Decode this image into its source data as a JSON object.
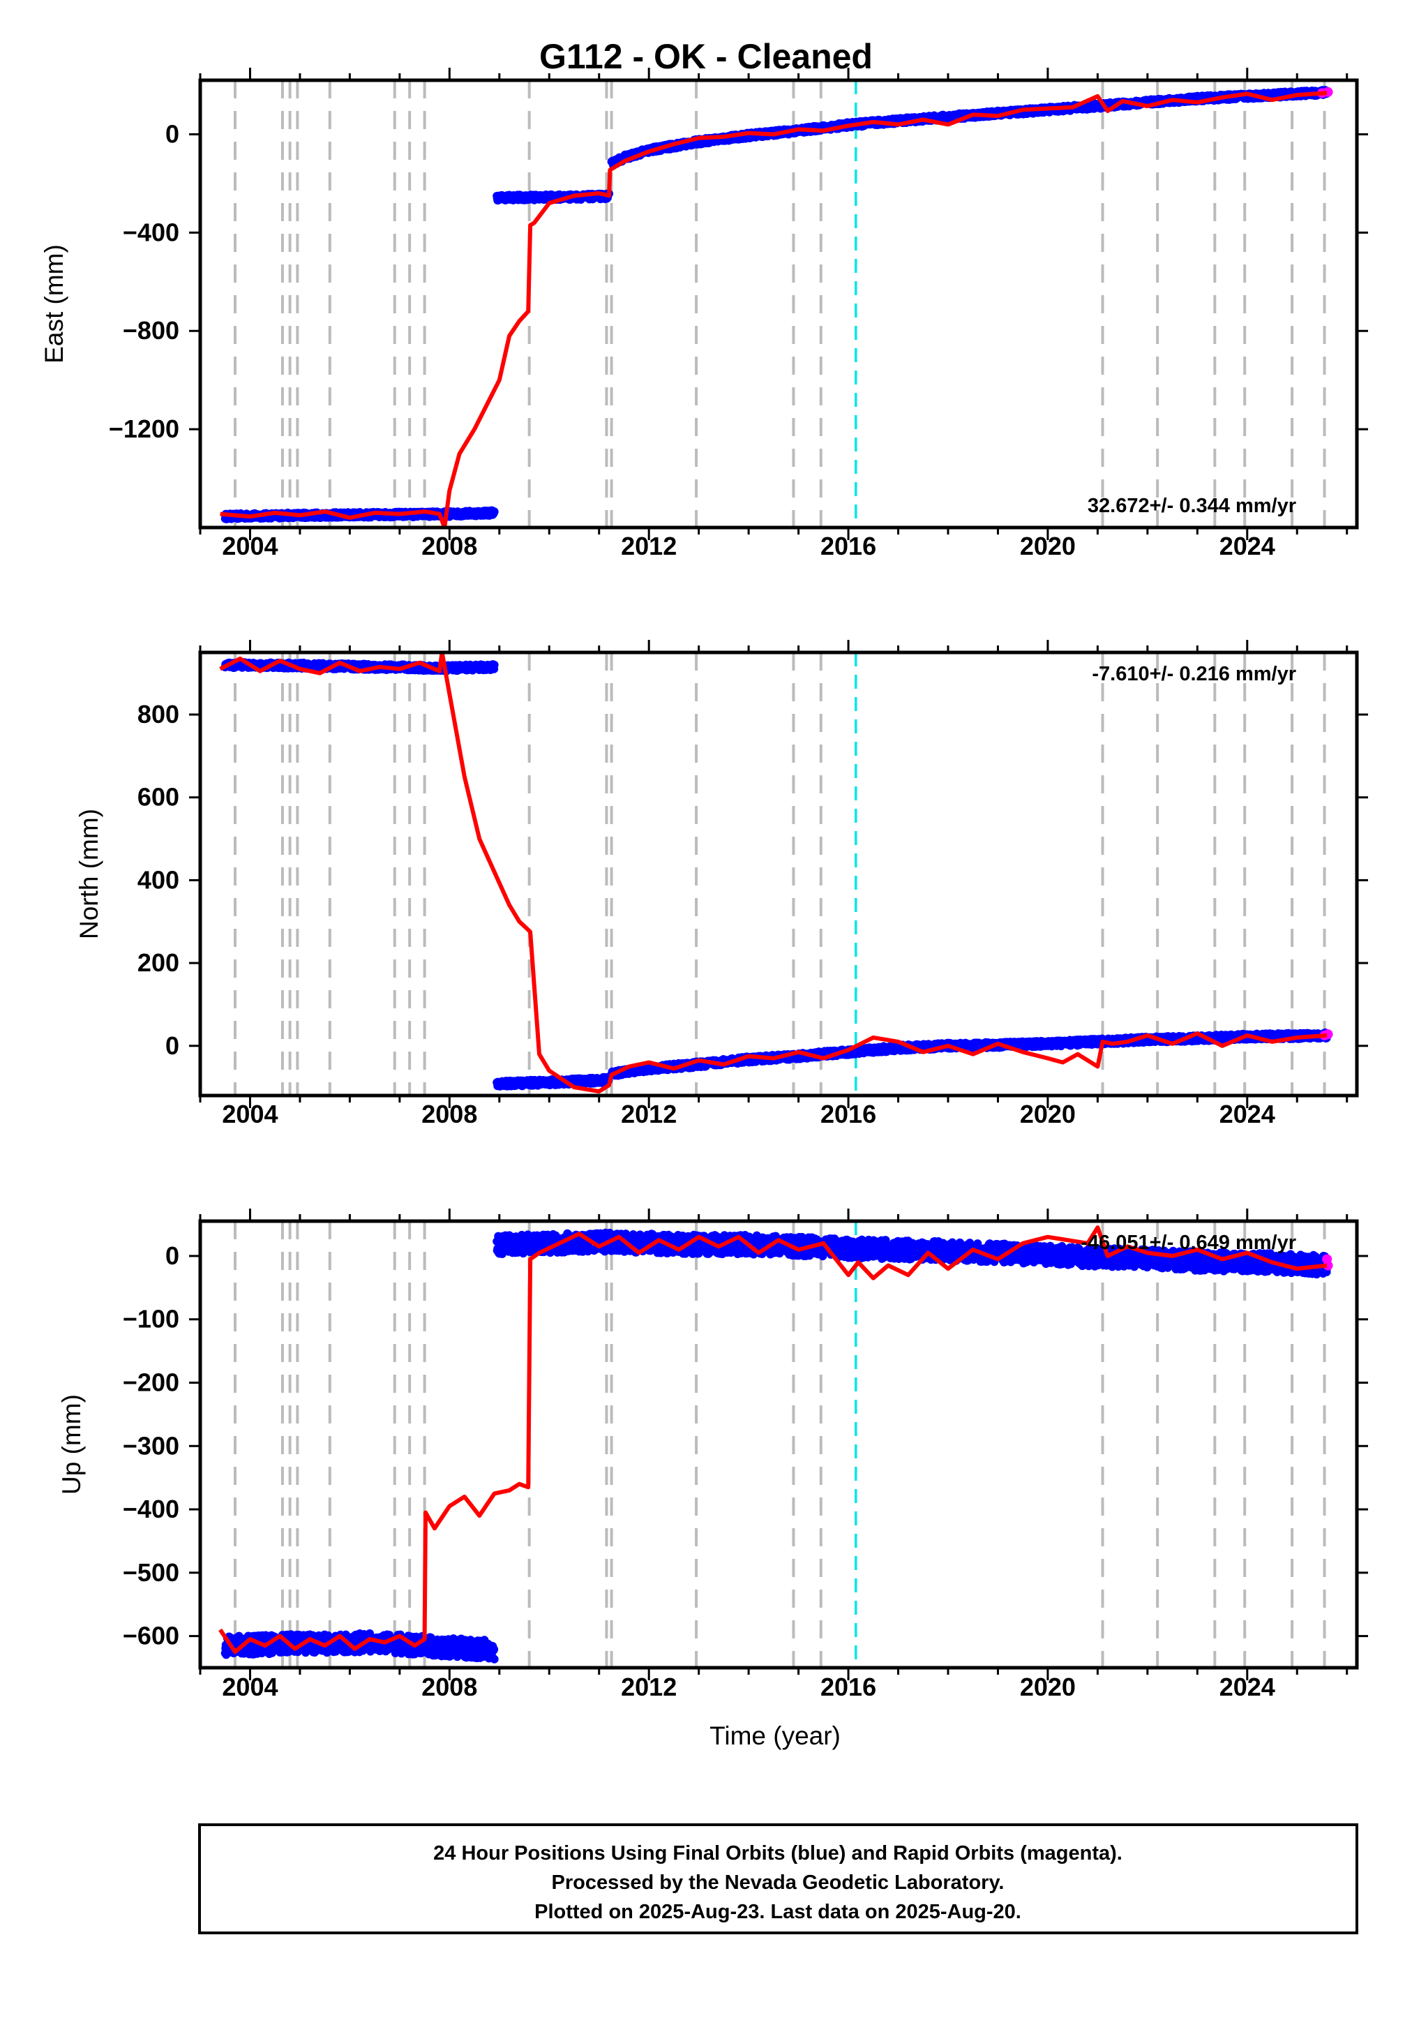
{
  "title": "G112  - OK - Cleaned",
  "footer": {
    "line1": "24 Hour Positions Using Final Orbits (blue) and Rapid Orbits (magenta).",
    "line2": "Processed by the Nevada Geodetic Laboratory.",
    "line3": "Plotted on 2025-Aug-23. Last data on 2025-Aug-20."
  },
  "colors": {
    "final_orbits": "#0000ff",
    "rapid_orbits": "#ff00ff",
    "model": "#ff0000",
    "event_line": "#bbbbbb",
    "cyan_line": "#00e5e5"
  },
  "chart_data": [
    {
      "type": "scatter",
      "panel": "east",
      "ylabel": "East (mm)",
      "xlabel": "",
      "xlim": [
        2003.0,
        2026.2
      ],
      "ylim": [
        -1600,
        220
      ],
      "yticks": [
        0,
        -400,
        -800,
        -1200
      ],
      "ytick_labels": [
        "0",
        "−400",
        "−800",
        "−1200"
      ],
      "xticks": [
        2004,
        2008,
        2012,
        2016,
        2020,
        2024
      ],
      "xtick_labels": [
        "2004",
        "2008",
        "2012",
        "2016",
        "2020",
        "2024"
      ],
      "rate_label": "32.672+/- 0.344 mm/yr",
      "rate_position": "bottom-right",
      "final_series": [
        {
          "x": [
            2003.5,
            2005.0,
            2006.5,
            2008.0,
            2008.9
          ],
          "y": [
            -1555,
            -1550,
            -1548,
            -1545,
            -1540
          ]
        },
        {
          "x": [
            2008.95,
            2009.5,
            2010.5,
            2011.2
          ],
          "y": [
            -258,
            -257,
            -255,
            -252
          ]
        },
        {
          "x": [
            2011.25,
            2011.5,
            2012.0,
            2013.0,
            2014.0,
            2015.0,
            2016.0,
            2017.0,
            2018.0,
            2019.0,
            2020.0,
            2021.0,
            2022.0,
            2023.0,
            2024.0,
            2025.6
          ],
          "y": [
            -120,
            -95,
            -65,
            -30,
            -5,
            15,
            38,
            55,
            70,
            85,
            100,
            115,
            130,
            145,
            155,
            170
          ]
        }
      ],
      "rapid_series": {
        "x": [
          2025.5,
          2025.62
        ],
        "y": [
          168,
          172
        ]
      },
      "model_line": {
        "x": [
          2003.4,
          2004.0,
          2004.5,
          2005.0,
          2005.5,
          2006.0,
          2006.5,
          2007.0,
          2007.5,
          2007.8,
          2007.9,
          2008.0,
          2008.2,
          2008.5,
          2008.8,
          2009.0,
          2009.2,
          2009.4,
          2009.58,
          2009.62,
          2009.7,
          2010.0,
          2010.5,
          2011.0,
          2011.2,
          2011.22,
          2011.5,
          2012.0,
          2012.5,
          2013.0,
          2013.5,
          2014.0,
          2014.5,
          2015.0,
          2015.5,
          2016.0,
          2016.5,
          2017.0,
          2017.5,
          2018.0,
          2018.5,
          2019.0,
          2019.5,
          2020.0,
          2020.5,
          2021.0,
          2021.2,
          2021.5,
          2022.0,
          2022.5,
          2023.0,
          2023.5,
          2024.0,
          2024.5,
          2025.0,
          2025.6
        ],
        "y": [
          -1545,
          -1555,
          -1540,
          -1550,
          -1535,
          -1560,
          -1540,
          -1545,
          -1535,
          -1545,
          -1600,
          -1450,
          -1300,
          -1200,
          -1080,
          -1000,
          -820,
          -760,
          -720,
          -370,
          -360,
          -280,
          -250,
          -240,
          -250,
          -145,
          -110,
          -70,
          -40,
          -15,
          -10,
          5,
          0,
          20,
          15,
          35,
          50,
          40,
          60,
          40,
          80,
          75,
          100,
          105,
          110,
          155,
          95,
          135,
          115,
          140,
          130,
          150,
          165,
          140,
          160,
          168
        ]
      },
      "event_lines": [
        2003.7,
        2004.65,
        2004.8,
        2004.95,
        2005.6,
        2006.9,
        2007.2,
        2007.5,
        2009.6,
        2011.15,
        2011.25,
        2012.95,
        2014.9,
        2015.45,
        2021.1,
        2022.2,
        2023.35,
        2023.95,
        2024.9,
        2025.55
      ],
      "cyan_lines": [
        2016.15
      ]
    },
    {
      "type": "scatter",
      "panel": "north",
      "ylabel": "North (mm)",
      "xlabel": "",
      "xlim": [
        2003.0,
        2026.2
      ],
      "ylim": [
        -120,
        950
      ],
      "yticks": [
        800,
        600,
        400,
        200,
        0
      ],
      "ytick_labels": [
        "800",
        "600",
        "400",
        "200",
        "0"
      ],
      "xticks": [
        2004,
        2008,
        2012,
        2016,
        2020,
        2024
      ],
      "xtick_labels": [
        "2004",
        "2008",
        "2012",
        "2016",
        "2020",
        "2024"
      ],
      "rate_label": "-7.610+/- 0.216 mm/yr",
      "rate_position": "top-right",
      "final_series": [
        {
          "x": [
            2003.5,
            2005.0,
            2006.5,
            2008.0,
            2008.9
          ],
          "y": [
            920,
            918,
            915,
            912,
            915
          ]
        },
        {
          "x": [
            2008.95,
            2009.5,
            2010.5,
            2011.2
          ],
          "y": [
            -92,
            -90,
            -86,
            -82
          ]
        },
        {
          "x": [
            2011.25,
            2012.0,
            2013.0,
            2014.0,
            2015.0,
            2016.0,
            2017.0,
            2018.0,
            2019.0,
            2020.0,
            2021.0,
            2022.0,
            2023.0,
            2024.0,
            2025.6
          ],
          "y": [
            -68,
            -55,
            -45,
            -33,
            -25,
            -15,
            -5,
            0,
            2,
            5,
            10,
            15,
            18,
            22,
            25
          ]
        }
      ],
      "rapid_series": {
        "x": [
          2025.55,
          2025.62
        ],
        "y": [
          25,
          28
        ]
      },
      "model_line": {
        "x": [
          2003.4,
          2003.8,
          2004.2,
          2004.6,
          2005.0,
          2005.4,
          2005.8,
          2006.2,
          2006.6,
          2007.0,
          2007.4,
          2007.8,
          2007.85,
          2008.0,
          2008.3,
          2008.6,
          2008.9,
          2009.2,
          2009.4,
          2009.58,
          2009.62,
          2009.8,
          2010.0,
          2010.5,
          2011.0,
          2011.2,
          2011.25,
          2011.6,
          2012.0,
          2012.5,
          2013.0,
          2013.5,
          2014.0,
          2014.5,
          2015.0,
          2015.5,
          2016.0,
          2016.5,
          2017.0,
          2017.5,
          2018.0,
          2018.5,
          2019.0,
          2019.5,
          2020.0,
          2020.3,
          2020.6,
          2021.0,
          2021.1,
          2021.3,
          2021.6,
          2022.0,
          2022.5,
          2023.0,
          2023.5,
          2024.0,
          2024.5,
          2025.0,
          2025.6
        ],
        "y": [
          910,
          935,
          905,
          930,
          910,
          900,
          925,
          905,
          915,
          910,
          925,
          905,
          950,
          850,
          650,
          500,
          420,
          340,
          300,
          280,
          275,
          -20,
          -60,
          -100,
          -110,
          -95,
          -70,
          -50,
          -40,
          -55,
          -35,
          -45,
          -25,
          -30,
          -15,
          -30,
          -10,
          20,
          10,
          -15,
          0,
          -20,
          5,
          -15,
          -30,
          -40,
          -20,
          -50,
          10,
          5,
          10,
          25,
          5,
          30,
          0,
          25,
          10,
          20,
          25
        ]
      },
      "event_lines": [
        2003.7,
        2004.65,
        2004.8,
        2004.95,
        2005.6,
        2006.9,
        2007.2,
        2007.5,
        2009.6,
        2011.15,
        2011.25,
        2012.95,
        2014.9,
        2015.45,
        2021.1,
        2022.2,
        2023.35,
        2023.95,
        2024.9,
        2025.55
      ],
      "cyan_lines": [
        2016.15
      ]
    },
    {
      "type": "scatter",
      "panel": "up",
      "ylabel": "Up (mm)",
      "xlabel": "Time (year)",
      "xlim": [
        2003.0,
        2026.2
      ],
      "ylim": [
        -650,
        55
      ],
      "yticks": [
        0,
        -100,
        -200,
        -300,
        -400,
        -500,
        -600
      ],
      "ytick_labels": [
        "0",
        "−100",
        "−200",
        "−300",
        "−400",
        "−500",
        "−600"
      ],
      "xticks": [
        2004,
        2008,
        2012,
        2016,
        2020,
        2024
      ],
      "xtick_labels": [
        "2004",
        "2008",
        "2012",
        "2016",
        "2020",
        "2024"
      ],
      "rate_label": "-46.051+/- 0.649 mm/yr",
      "rate_position": "top-right",
      "final_series": [
        {
          "x": [
            2003.5,
            2005.0,
            2006.5,
            2008.0,
            2008.9
          ],
          "y": [
            -615,
            -612,
            -610,
            -618,
            -622
          ]
        },
        {
          "x": [
            2008.95,
            2010.0,
            2011.0,
            2012.0,
            2013.0,
            2014.0,
            2015.0,
            2016.0,
            2017.0,
            2018.0,
            2019.0,
            2020.0,
            2021.0,
            2022.0,
            2023.0,
            2024.0,
            2025.0,
            2025.6
          ],
          "y": [
            18,
            20,
            22,
            20,
            18,
            18,
            15,
            12,
            10,
            8,
            5,
            2,
            -2,
            -5,
            -8,
            -10,
            -12,
            -15
          ]
        }
      ],
      "rapid_series": {
        "x": [
          2025.6,
          2025.62
        ],
        "y": [
          -5,
          -15
        ]
      },
      "model_line": {
        "x": [
          2003.4,
          2003.7,
          2004.0,
          2004.3,
          2004.6,
          2004.9,
          2005.2,
          2005.5,
          2005.8,
          2006.1,
          2006.4,
          2006.7,
          2007.0,
          2007.3,
          2007.5,
          2007.52,
          2007.7,
          2008.0,
          2008.3,
          2008.6,
          2008.9,
          2009.2,
          2009.4,
          2009.58,
          2009.62,
          2009.8,
          2010.2,
          2010.6,
          2011.0,
          2011.4,
          2011.8,
          2012.2,
          2012.6,
          2013.0,
          2013.4,
          2013.8,
          2014.2,
          2014.6,
          2015.0,
          2015.5,
          2016.0,
          2016.2,
          2016.5,
          2016.8,
          2017.2,
          2017.6,
          2018.0,
          2018.5,
          2019.0,
          2019.5,
          2020.0,
          2020.4,
          2020.8,
          2021.0,
          2021.2,
          2021.6,
          2022.0,
          2022.5,
          2023.0,
          2023.5,
          2024.0,
          2024.5,
          2025.0,
          2025.6
        ],
        "y": [
          -590,
          -625,
          -605,
          -615,
          -600,
          -620,
          -605,
          -615,
          -600,
          -620,
          -605,
          -610,
          -600,
          -615,
          -605,
          -405,
          -430,
          -395,
          -380,
          -410,
          -375,
          -370,
          -360,
          -365,
          -5,
          5,
          20,
          35,
          15,
          30,
          5,
          25,
          10,
          30,
          15,
          30,
          5,
          25,
          10,
          20,
          -30,
          -10,
          -35,
          -15,
          -30,
          5,
          -20,
          10,
          -5,
          20,
          30,
          25,
          20,
          45,
          0,
          15,
          5,
          0,
          10,
          -5,
          5,
          -10,
          -20,
          -15
        ]
      },
      "event_lines": [
        2003.7,
        2004.65,
        2004.8,
        2004.95,
        2005.6,
        2006.9,
        2007.2,
        2007.5,
        2009.6,
        2011.15,
        2011.25,
        2012.95,
        2014.9,
        2015.45,
        2021.1,
        2022.2,
        2023.35,
        2023.95,
        2024.9,
        2025.55
      ],
      "cyan_lines": [
        2016.15
      ]
    }
  ]
}
